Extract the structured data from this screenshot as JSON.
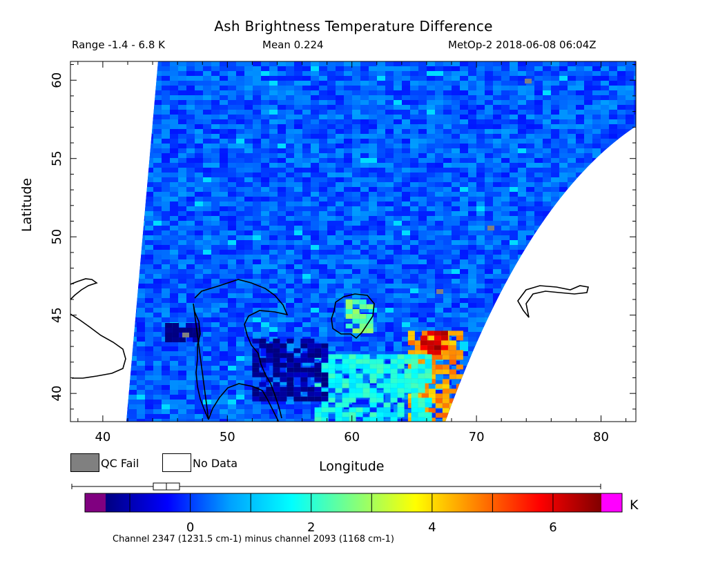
{
  "header": {
    "title": "Ash Brightness Temperature Difference",
    "range": "Range -1.4 - 6.8 K",
    "mean": "Mean 0.224",
    "satellite_time": "MetOp-2 2018-06-08 06:04Z"
  },
  "axes": {
    "x_title": "Longitude",
    "y_title": "Latitude",
    "x_ticks": [
      "40",
      "50",
      "60",
      "70",
      "80"
    ],
    "y_ticks": [
      "60",
      "55",
      "50",
      "45",
      "40"
    ],
    "x_range": [
      37.4,
      82.8
    ],
    "y_range": [
      38.2,
      61.2
    ]
  },
  "legend": {
    "qc_fail": "QC Fail",
    "no_data": "No Data",
    "qc_fail_color": "#808080",
    "no_data_color": "#ffffff"
  },
  "colorbar": {
    "ticks": [
      "0",
      "2",
      "4",
      "6"
    ],
    "unit": "K",
    "range": [
      -1.4,
      6.8
    ],
    "under_color": "#800080",
    "over_color": "#ff00ff",
    "stops": [
      "#000080",
      "#0000ff",
      "#00a0ff",
      "#00ffff",
      "#80ff80",
      "#ffff00",
      "#ff8000",
      "#ff0000",
      "#800000"
    ],
    "caption": "Channel 2347 (1231.5 cm-1) minus channel 2093 (1168 cm-1)"
  },
  "chart_data": {
    "type": "heatmap",
    "title": "Ash Brightness Temperature Difference",
    "xlabel": "Longitude",
    "ylabel": "Latitude",
    "xlim": [
      37.4,
      82.8
    ],
    "ylim": [
      38.2,
      61.2
    ],
    "value_range_K": [
      -1.4,
      6.8
    ],
    "mean_K": 0.224,
    "background_value_K": 0.2,
    "features": [
      {
        "name": "high BTD band",
        "lon": [
          64.5,
          68.5
        ],
        "lat": [
          38.2,
          44.0
        ],
        "value_K": 4.5
      },
      {
        "name": "high BTD core",
        "lon": [
          65.5,
          67.2
        ],
        "lat": [
          42.5,
          44.0
        ],
        "value_K": 6.2
      },
      {
        "name": "Aral Sea region",
        "lon": [
          59.5,
          61.5
        ],
        "lat": [
          44.0,
          46.0
        ],
        "value_K": 2.5
      },
      {
        "name": "cyan region",
        "lon": [
          57.0,
          66.0
        ],
        "lat": [
          38.2,
          42.5
        ],
        "value_K": 1.8
      },
      {
        "name": "negative BTD area",
        "lon": [
          52.0,
          58.0
        ],
        "lat": [
          39.5,
          43.5
        ],
        "value_K": -1.3
      },
      {
        "name": "negative BTD area west",
        "lon": [
          45.0,
          47.5
        ],
        "lat": [
          43.5,
          44.5
        ],
        "value_K": -1.3
      }
    ]
  }
}
